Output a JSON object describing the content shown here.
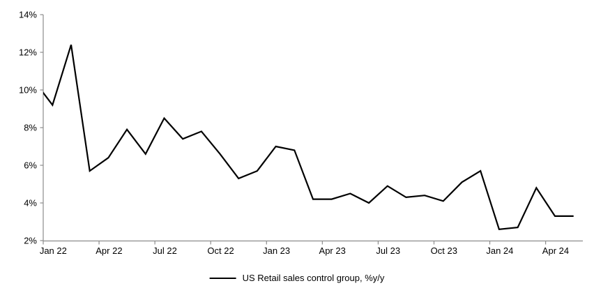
{
  "page": {
    "background": "#ffffff"
  },
  "chart_data": {
    "type": "line",
    "x_months": [
      "Jan 22",
      "Feb 22",
      "Mar 22",
      "Apr 22",
      "May 22",
      "Jun 22",
      "Jul 22",
      "Aug 22",
      "Sep 22",
      "Oct 22",
      "Nov 22",
      "Dec 22",
      "Jan 23",
      "Feb 23",
      "Mar 23",
      "Apr 23",
      "May 23",
      "Jun 23",
      "Jul 23",
      "Aug 23",
      "Sep 23",
      "Oct 23",
      "Nov 23",
      "Dec 23",
      "Jan 24",
      "Feb 24",
      "Mar 24",
      "Apr 24",
      "May 24"
    ],
    "series": [
      {
        "name": "US Retail sales control group, %y/y",
        "color": "#000000",
        "line_width": 2.2,
        "values": [
          9.2,
          12.4,
          5.7,
          6.4,
          7.9,
          6.6,
          8.5,
          7.4,
          7.8,
          6.6,
          5.3,
          5.7,
          7.0,
          6.8,
          4.2,
          4.2,
          4.5,
          4.0,
          4.9,
          4.3,
          4.4,
          4.1,
          5.1,
          5.7,
          2.6,
          2.7,
          4.8,
          3.3,
          3.3
        ],
        "pre_window_point": {
          "value": 10.5,
          "note": "line enters plot clipped at y-axis at ~9.9%"
        }
      }
    ],
    "ylim": [
      2,
      14
    ],
    "ytick_values": [
      14,
      12,
      10,
      8,
      6,
      4,
      2
    ],
    "ytick_labels": [
      "14%",
      "12%",
      "10%",
      "8%",
      "6%",
      "4%",
      "2%"
    ],
    "xtick_labels": [
      "Jan 22",
      "Apr 22",
      "Jul 22",
      "Oct 22",
      "Jan 23",
      "Apr 23",
      "Jul 23",
      "Oct 23",
      "Jan 24",
      "Apr 24"
    ],
    "xtick_every_months": 3,
    "grid": false,
    "legend_position": "bottom-center",
    "axis_color": "#8c8c8c",
    "text_color": "#000000",
    "tick_font_px": 13
  }
}
